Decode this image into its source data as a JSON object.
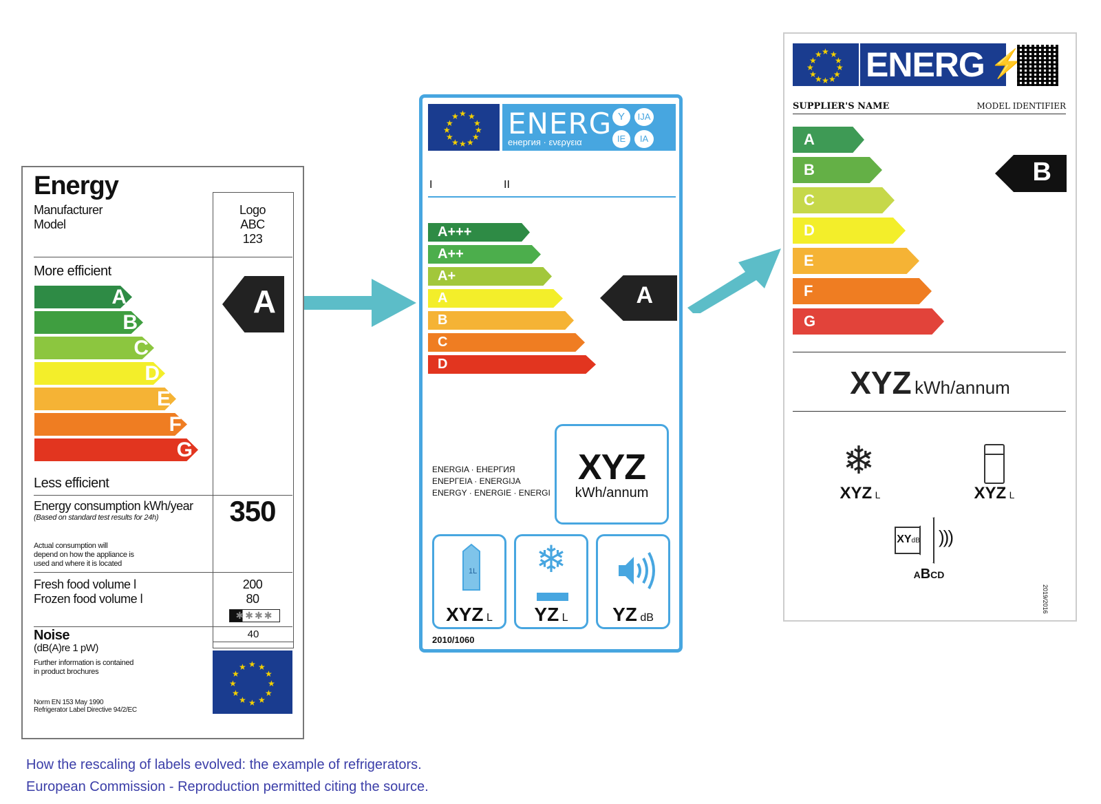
{
  "label1": {
    "title": "Energy",
    "manufacturer": "Manufacturer",
    "model": "Model",
    "logo_lines": [
      "Logo",
      "ABC",
      "123"
    ],
    "more_efficient": "More efficient",
    "less_efficient": "Less efficient",
    "classes": [
      "A",
      "B",
      "C",
      "D",
      "E",
      "F",
      "G"
    ],
    "class_colors": [
      "#2e8b45",
      "#3f9e40",
      "#8cc63f",
      "#f3ee2a",
      "#f5b335",
      "#ef7d22",
      "#e2351f"
    ],
    "rating": "A",
    "consumption_label": "Energy consumption kWh/year",
    "consumption_note": "(Based on standard test results for 24h)",
    "consumption_value": "350",
    "actual_note_1": "Actual consumption will",
    "actual_note_2": "depend on how the appliance is",
    "actual_note_3": "used and where it is located",
    "fresh_label": "Fresh food volume l",
    "frozen_label": "Frozen food volume l",
    "fresh_value": "200",
    "frozen_value": "80",
    "stars": "✱✱✱✱",
    "noise_label": "Noise",
    "noise_unit": "(dB(A)re 1 pW)",
    "noise_value": "40",
    "info_1": "Further information is contained",
    "info_2": "in product brochures",
    "norm_1": "Norm EN 153 May 1990",
    "norm_2": "Refrigerator Label Directive 94/2/EC"
  },
  "label2": {
    "title": "ENERG",
    "subtitle": "енергия · ενεργεια",
    "suffixes": [
      "Y",
      "IJA",
      "IE",
      "IA"
    ],
    "col1": "I",
    "col2": "II",
    "classes": [
      "A+++",
      "A++",
      "A+",
      "A",
      "B",
      "C",
      "D"
    ],
    "class_colors": [
      "#2e8b45",
      "#4cae4c",
      "#a2c73b",
      "#f3ee2a",
      "#f5b335",
      "#ef7d22",
      "#e2351f"
    ],
    "rating": "A",
    "energy_words_1": "ENERGIA · ЕНЕРГИЯ",
    "energy_words_2": "ΕΝΕΡΓΕΙΑ · ENERGIJA",
    "energy_words_3": "ENERGY · ENERGIE · ENERGI",
    "consumption_value": "XYZ",
    "consumption_unit": "kWh/annum",
    "fresh_value": "XYZ",
    "fresh_unit": "L",
    "frozen_value": "YZ",
    "frozen_unit": "L",
    "noise_value": "YZ",
    "noise_unit": "dB",
    "carton_label": "1L",
    "regulation": "2010/1060"
  },
  "label3": {
    "title": "ENERG",
    "supplier": "SUPPLIER'S NAME",
    "model_identifier": "MODEL IDENTIFIER",
    "classes": [
      "A",
      "B",
      "C",
      "D",
      "E",
      "F",
      "G"
    ],
    "class_colors": [
      "#3e9a55",
      "#64b046",
      "#c6d84a",
      "#f3ee2a",
      "#f5b335",
      "#ef7d22",
      "#e2433a"
    ],
    "rating": "B",
    "consumption_value": "XYZ",
    "consumption_unit": "kWh/annum",
    "frozen_value": "XYZ",
    "frozen_unit": "L",
    "fresh_value": "XYZ",
    "fresh_unit": "L",
    "noise_value": "XY",
    "noise_unit": "dB",
    "noise_class_a": "A",
    "noise_class_b": "B",
    "noise_class_cd": "CD",
    "regulation": "2019/2016"
  },
  "caption": {
    "line1": "How the rescaling of labels evolved: the example of refrigerators.",
    "line2": "European Commission - Reproduction permitted citing the source."
  }
}
